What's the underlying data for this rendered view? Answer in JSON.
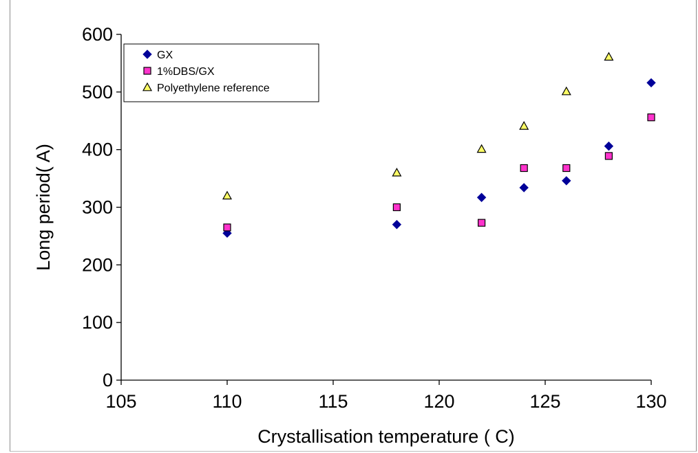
{
  "chart_data": {
    "type": "scatter",
    "title": "",
    "xlabel": "Crystallisation temperature ( C)",
    "ylabel": "Long period( A)",
    "xlim": [
      105,
      130
    ],
    "ylim": [
      0,
      600
    ],
    "x_ticks": [
      105,
      110,
      115,
      120,
      125,
      130
    ],
    "y_ticks": [
      0,
      100,
      200,
      300,
      400,
      500,
      600
    ],
    "grid": false,
    "legend_position": "top-left",
    "series": [
      {
        "name": "GX",
        "marker": "diamond",
        "color": "#000099",
        "x": [
          110,
          118,
          122,
          124,
          126,
          128,
          130
        ],
        "y": [
          255,
          270,
          317,
          334,
          346,
          406,
          516
        ]
      },
      {
        "name": "1%DBS/GX",
        "marker": "square",
        "color": "#ff33cc",
        "x": [
          110,
          118,
          122,
          124,
          126,
          128,
          130
        ],
        "y": [
          265,
          300,
          273,
          368,
          368,
          389,
          456
        ]
      },
      {
        "name": "Polyethylene reference",
        "marker": "triangle",
        "color": "#ffff66",
        "x": [
          110,
          118,
          122,
          124,
          126,
          128
        ],
        "y": [
          320,
          360,
          401,
          441,
          501,
          561
        ]
      }
    ]
  }
}
